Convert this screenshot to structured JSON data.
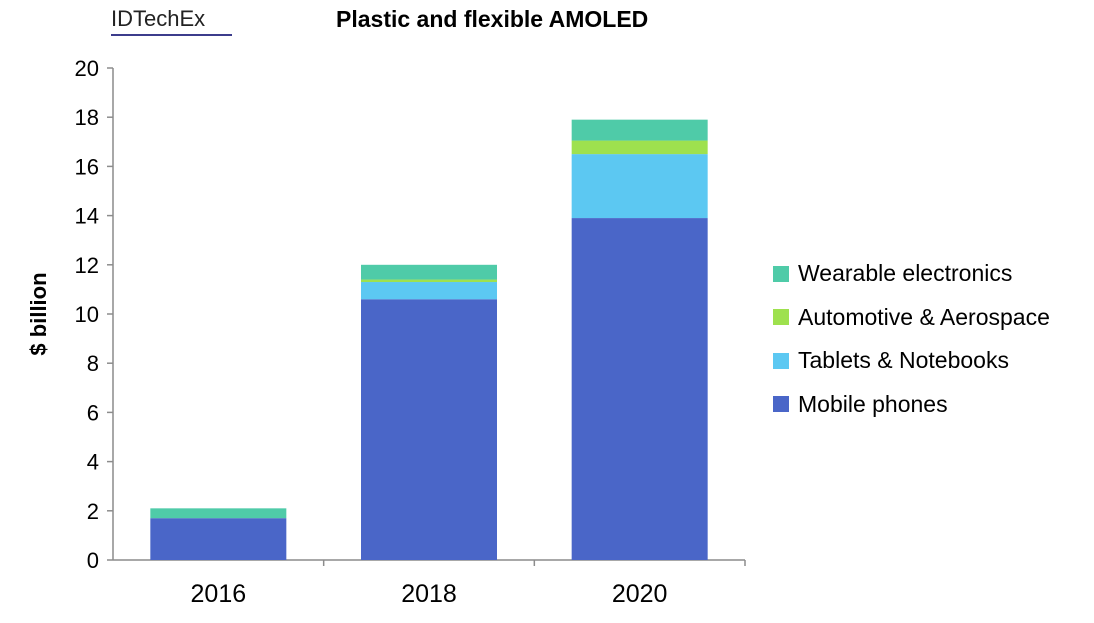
{
  "brand": "IDTechEx",
  "chart_data": {
    "type": "bar",
    "stacked": true,
    "title": "Plastic and flexible AMOLED",
    "xlabel": "",
    "ylabel": "$ billion",
    "ylim": [
      0,
      20
    ],
    "yticks": [
      0,
      2,
      4,
      6,
      8,
      10,
      12,
      14,
      16,
      18,
      20
    ],
    "categories": [
      "2016",
      "2018",
      "2020"
    ],
    "series": [
      {
        "name": "Mobile phones",
        "color": "#4a66c8",
        "values": [
          1.7,
          10.6,
          13.9
        ]
      },
      {
        "name": "Tablets & Notebooks",
        "color": "#5cc8f2",
        "values": [
          0.0,
          0.7,
          2.6
        ]
      },
      {
        "name": "Automotive & Aerospace",
        "color": "#9ee14e",
        "values": [
          0.0,
          0.1,
          0.55
        ]
      },
      {
        "name": "Wearable electronics",
        "color": "#4fcba8",
        "values": [
          0.4,
          0.6,
          0.85
        ]
      }
    ],
    "legend_position": "right",
    "legend_order": [
      "Wearable electronics",
      "Automotive & Aerospace",
      "Tablets & Notebooks",
      "Mobile phones"
    ],
    "grid": false
  }
}
